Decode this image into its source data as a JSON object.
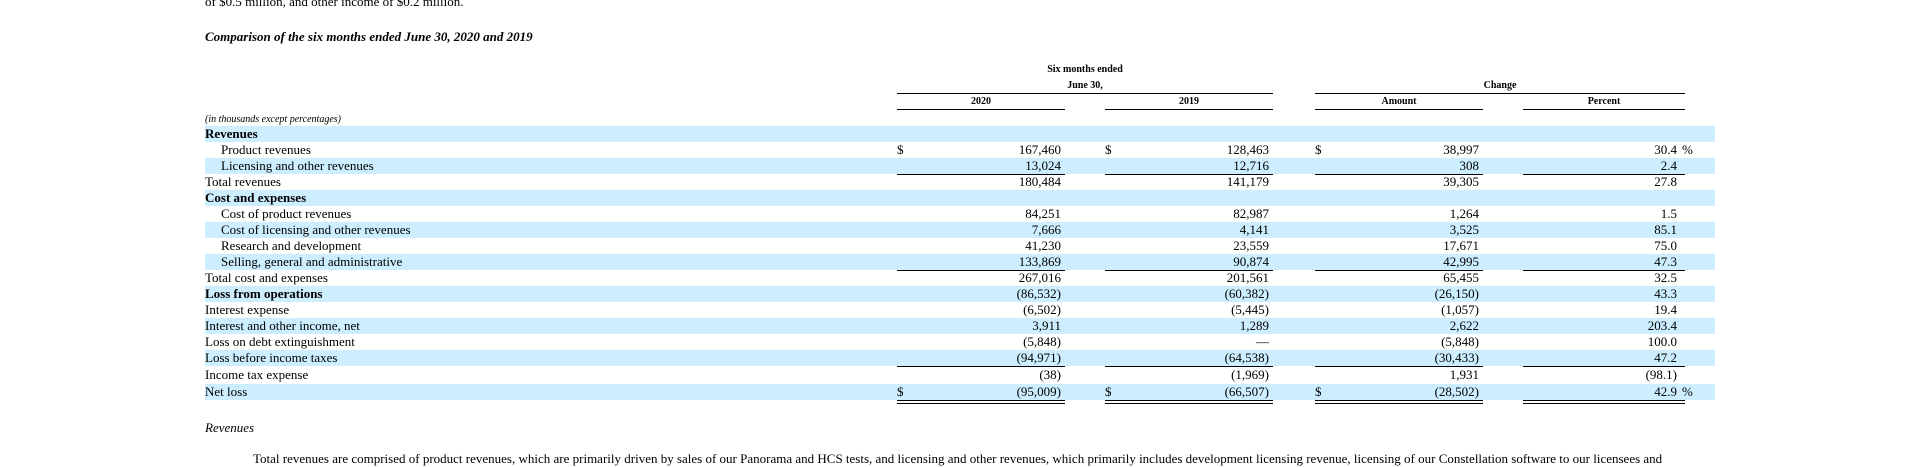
{
  "top_line": "of $0.5 million, and other income of $0.2 million.",
  "section_title": "Comparison of the six months ended June 30, 2020 and 2019",
  "header": {
    "period_line1": "Six months ended",
    "period_line2": "June 30,",
    "change": "Change",
    "col_2020": "2020",
    "col_2019": "2019",
    "col_amount": "Amount",
    "col_percent": "Percent"
  },
  "units_note": "(in thousands except percentages)",
  "rows": [
    {
      "label": "Revenues",
      "bold": true,
      "indent": false,
      "shade": true,
      "c2020": "",
      "c2019": "",
      "amount": "",
      "percent": ""
    },
    {
      "label": "Product revenues",
      "indent": true,
      "shade": false,
      "dollar": true,
      "pct_sign": true,
      "c2020": "167,460",
      "c2019": "128,463",
      "amount": "38,997",
      "percent": "30.4"
    },
    {
      "label": "Licensing and other revenues",
      "indent": true,
      "shade": true,
      "c2020": "13,024",
      "c2019": "12,716",
      "amount": "308",
      "percent": "2.4",
      "underline": true
    },
    {
      "label": "Total revenues",
      "indent": false,
      "shade": false,
      "c2020": "180,484",
      "c2019": "141,179",
      "amount": "39,305",
      "percent": "27.8"
    },
    {
      "label": "Cost and expenses",
      "bold": true,
      "indent": false,
      "shade": true,
      "c2020": "",
      "c2019": "",
      "amount": "",
      "percent": ""
    },
    {
      "label": "Cost of product revenues",
      "indent": true,
      "shade": false,
      "c2020": "84,251",
      "c2019": "82,987",
      "amount": "1,264",
      "percent": "1.5"
    },
    {
      "label": "Cost of licensing and other revenues",
      "indent": true,
      "shade": true,
      "c2020": "7,666",
      "c2019": "4,141",
      "amount": "3,525",
      "percent": "85.1"
    },
    {
      "label": "Research and development",
      "indent": true,
      "shade": false,
      "c2020": "41,230",
      "c2019": "23,559",
      "amount": "17,671",
      "percent": "75.0"
    },
    {
      "label": "Selling, general and administrative",
      "indent": true,
      "shade": true,
      "c2020": "133,869",
      "c2019": "90,874",
      "amount": "42,995",
      "percent": "47.3",
      "underline": true
    },
    {
      "label": "Total cost and expenses",
      "indent": false,
      "shade": false,
      "c2020": "267,016",
      "c2019": "201,561",
      "amount": "65,455",
      "percent": "32.5"
    },
    {
      "label": "Loss from operations",
      "bold": true,
      "indent": false,
      "shade": true,
      "c2020": "(86,532)",
      "c2019": "(60,382)",
      "amount": "(26,150)",
      "percent": "43.3"
    },
    {
      "label": "Interest expense",
      "indent": false,
      "shade": false,
      "c2020": "(6,502)",
      "c2019": "(5,445)",
      "amount": "(1,057)",
      "percent": "19.4"
    },
    {
      "label": "Interest and other income, net",
      "indent": false,
      "shade": true,
      "c2020": "3,911",
      "c2019": "1,289",
      "amount": "2,622",
      "percent": "203.4"
    },
    {
      "label": "Loss on debt extinguishment",
      "indent": false,
      "shade": false,
      "c2020": "(5,848)",
      "c2019": "—",
      "amount": "(5,848)",
      "percent": "100.0",
      "underline": true
    },
    {
      "label": "Loss before income taxes",
      "indent": false,
      "shade": true,
      "c2020": "(94,971)",
      "c2019": "(64,538)",
      "amount": "(30,433)",
      "percent": "47.2",
      "underline": true
    },
    {
      "label": "Income tax expense",
      "indent": false,
      "shade": false,
      "c2020": "(38)",
      "c2019": "(1,969)",
      "amount": "1,931",
      "percent": "(98.1)"
    },
    {
      "label": "Net loss",
      "indent": false,
      "shade": true,
      "dollar": true,
      "pct_sign": true,
      "c2020": "(95,009)",
      "c2019": "(66,507)",
      "amount": "(28,502)",
      "percent": "42.9",
      "double": true
    }
  ],
  "dollar_sign": "$",
  "percent_sign": "%",
  "subsection_title": "Revenues",
  "paragraph": "Total revenues are comprised of product revenues, which are primarily driven by sales of our Panorama and HCS tests, and licensing and other revenues, which primarily includes development licensing revenue, licensing of our Constellation software to our licensees and"
}
